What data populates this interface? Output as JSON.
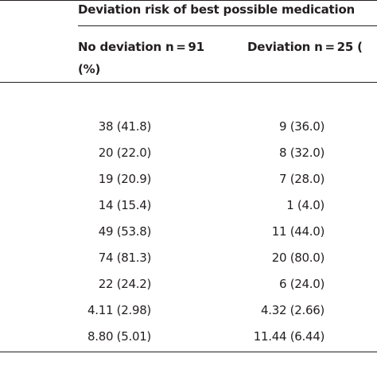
{
  "table": {
    "group_header": "Deviation risk of best possible medication",
    "columns": [
      {
        "label": "No deviation n = 91",
        "unit": "(%)"
      },
      {
        "label": "Deviation n = 25 (",
        "unit": ""
      }
    ],
    "rows": [
      {
        "no_deviation": "38 (41.8)",
        "deviation": "9 (36.0)"
      },
      {
        "no_deviation": "20 (22.0)",
        "deviation": "8 (32.0)"
      },
      {
        "no_deviation": "19 (20.9)",
        "deviation": "7 (28.0)"
      },
      {
        "no_deviation": "14 (15.4)",
        "deviation": "1 (4.0)"
      },
      {
        "no_deviation": "49 (53.8)",
        "deviation": "11 (44.0)"
      },
      {
        "no_deviation": "74 (81.3)",
        "deviation": "20 (80.0)"
      },
      {
        "no_deviation": "22 (24.2)",
        "deviation": "6 (24.0)"
      },
      {
        "no_deviation": "4.11 (2.98)",
        "deviation": "4.32 (2.66)"
      },
      {
        "no_deviation": "8.80 (5.01)",
        "deviation": "11.44 (6.44)"
      }
    ]
  }
}
